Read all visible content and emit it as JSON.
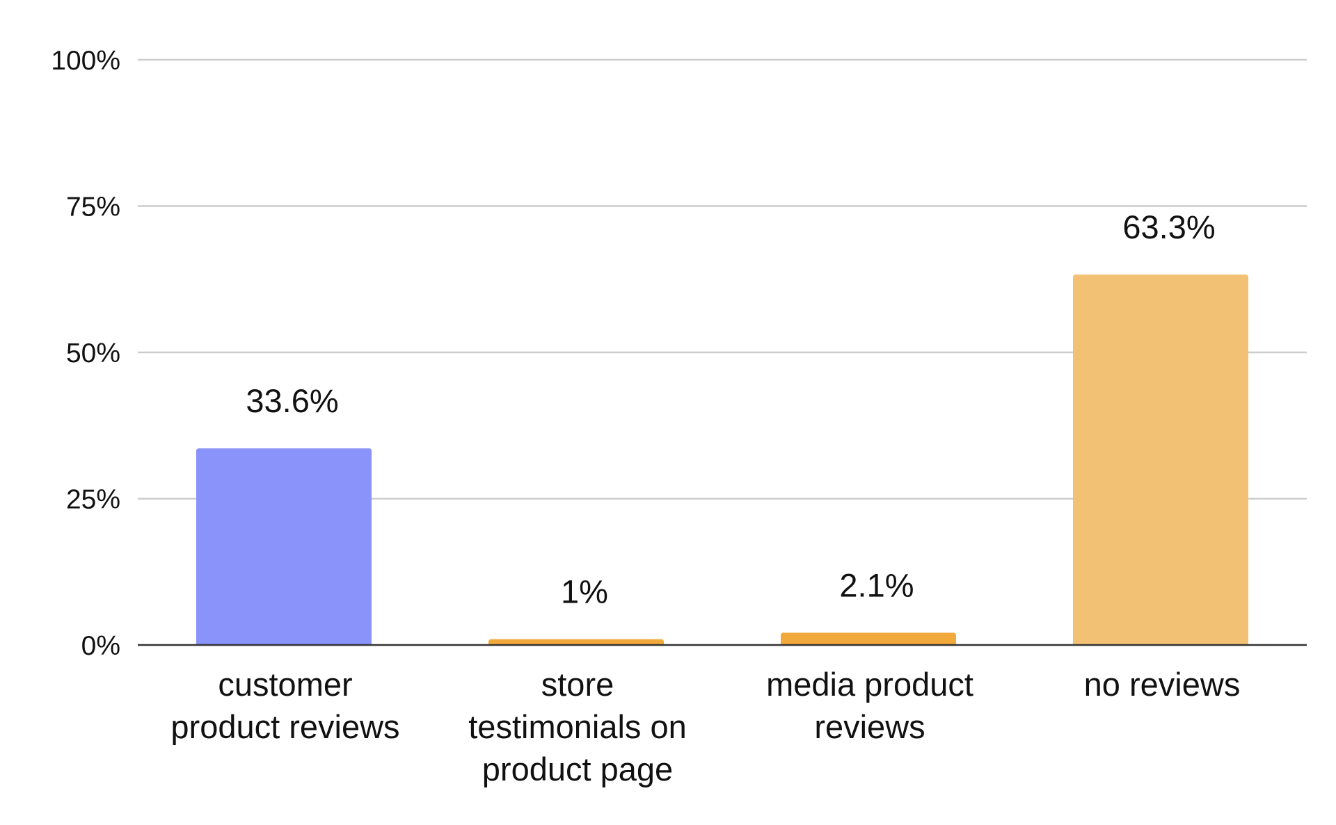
{
  "chart_data": {
    "type": "bar",
    "title": "",
    "xlabel": "",
    "ylabel": "",
    "ylim": [
      0,
      100
    ],
    "y_ticks": [
      0,
      25,
      50,
      75,
      100
    ],
    "y_tick_labels": [
      "0%",
      "25%",
      "50%",
      "75%",
      "100%"
    ],
    "grid": true,
    "categories": [
      [
        "customer",
        "product reviews"
      ],
      [
        "store",
        "testimonials on",
        "product page"
      ],
      [
        "media product",
        "reviews"
      ],
      [
        "no reviews"
      ]
    ],
    "values": [
      33.6,
      1,
      2.1,
      63.3
    ],
    "value_labels": [
      "33.6%",
      "1%",
      "2.1%",
      "63.3%"
    ],
    "bar_colors": [
      "#8993fa",
      "#f2a93b",
      "#f2a93b",
      "#f2c174"
    ],
    "grid_color": "#cccccc",
    "axis_color": "#333333"
  }
}
